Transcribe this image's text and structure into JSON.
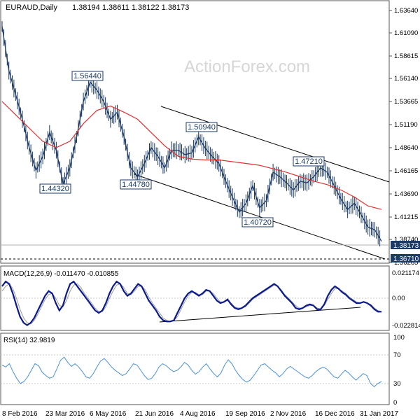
{
  "header": {
    "symbol": "EURAUD,Daily",
    "ohlc": "1.38194 1.38611 1.38122 1.38173"
  },
  "watermark": "ActionForex.com",
  "colors": {
    "candle": "#1b3a66",
    "sma": "#e03030",
    "macd": "#0a1a8c",
    "signal": "#9a9a9a",
    "rsi": "#4a90d9",
    "channel": "#000000",
    "label_border": "#1b3a66"
  },
  "chart_data": [
    {
      "type": "line",
      "panel": "price",
      "x_ticks": [
        "8 Feb 2016",
        "23 Mar 2016",
        "6 May 2016",
        "21 Jun 2016",
        "4 Aug 2016",
        "19 Sep 2016",
        "2 Nov 2016",
        "16 Dec 2016",
        "31 Jan 2017"
      ],
      "y_ticks": [
        "1.63640",
        "1.61090",
        "1.58615",
        "1.56140",
        "1.53665",
        "1.51190",
        "1.48640",
        "1.46165",
        "1.43690",
        "1.41215",
        "1.38740",
        "1.36265"
      ],
      "ylim": [
        1.358,
        1.643
      ],
      "last_price": "1.38173",
      "dashed_level": "1.36710",
      "annotations": [
        "1.56440",
        "1.44320",
        "1.44780",
        "1.50940",
        "1.40720",
        "1.47210"
      ],
      "series": [
        {
          "values": [
            1.625,
            1.575,
            1.548,
            1.52,
            1.488,
            1.462,
            1.478,
            1.505,
            1.485,
            1.447,
            1.465,
            1.5,
            1.54,
            1.562,
            1.553,
            1.54,
            1.52,
            1.528,
            1.5,
            1.465,
            1.455,
            1.47,
            1.488,
            1.478,
            1.465,
            1.485,
            1.485,
            1.48,
            1.482,
            1.5,
            1.487,
            1.478,
            1.47,
            1.45,
            1.432,
            1.415,
            1.425,
            1.445,
            1.42,
            1.428,
            1.46,
            1.455,
            1.448,
            1.44,
            1.45,
            1.448,
            1.455,
            1.465,
            1.46,
            1.445,
            1.43,
            1.418,
            1.425,
            1.412,
            1.398,
            1.395,
            1.382
          ]
        },
        {
          "values": [
            1.54,
            1.525,
            1.51,
            1.495,
            1.488,
            1.495,
            1.515,
            1.53,
            1.535,
            1.528,
            1.52,
            1.505,
            1.49,
            1.478,
            1.475,
            1.474,
            1.474,
            1.472,
            1.47,
            1.468,
            1.464,
            1.46,
            1.455,
            1.45,
            1.446,
            1.44,
            1.432,
            1.422,
            1.418
          ]
        }
      ]
    },
    {
      "type": "line",
      "panel": "macd",
      "title": "MACD(12,26,9) -0.011470 -0.010855",
      "y_ticks": [
        "0.021174",
        "0.00",
        "-0.022814"
      ],
      "series": [
        {
          "values": [
            0.01,
            0.014,
            0.012,
            0.004,
            -0.006,
            -0.015,
            -0.02,
            -0.022,
            -0.02,
            -0.016,
            -0.01,
            -0.004,
            0.002,
            0.006,
            0.004,
            -0.004,
            -0.01,
            -0.006,
            0.004,
            0.012,
            0.014,
            0.01,
            0.006,
            0.002,
            -0.002,
            -0.006,
            -0.01,
            -0.012,
            -0.01,
            -0.004,
            0.004,
            0.01,
            0.014,
            0.012,
            0.006,
            0.002,
            0.004,
            0.008,
            0.012,
            0.01,
            0.004,
            -0.002,
            -0.006,
            -0.01,
            -0.015,
            -0.018,
            -0.019,
            -0.019,
            -0.018,
            -0.012,
            -0.006,
            0.0,
            0.004,
            0.006,
            0.004,
            0.002,
            0.004,
            0.007,
            0.006,
            0.002,
            -0.002,
            -0.004,
            -0.003,
            -0.001,
            -0.005,
            -0.008,
            -0.009,
            -0.008,
            -0.006,
            -0.003,
            0.0,
            0.002,
            0.004,
            0.006,
            0.008,
            0.01,
            0.012,
            0.01,
            0.006,
            0.002,
            -0.001,
            -0.004,
            -0.008,
            -0.009,
            -0.008,
            -0.006,
            -0.005,
            -0.006,
            -0.009,
            -0.009,
            -0.005,
            0.002,
            0.007,
            0.01,
            0.008,
            0.005,
            0.003,
            0.0,
            -0.002,
            -0.004,
            -0.004,
            -0.003,
            -0.004,
            -0.006,
            -0.009,
            -0.011,
            -0.011
          ]
        },
        {
          "values": [
            0.006,
            0.01,
            0.012,
            0.008,
            0.0,
            -0.009,
            -0.016,
            -0.02,
            -0.021,
            -0.018,
            -0.013,
            -0.007,
            -0.001,
            0.003,
            0.004,
            0.0,
            -0.006,
            -0.007,
            -0.002,
            0.006,
            0.011,
            0.012,
            0.009,
            0.004,
            0.0,
            -0.004,
            -0.008,
            -0.011,
            -0.011,
            -0.007,
            0.0,
            0.006,
            0.011,
            0.012,
            0.009,
            0.004,
            0.003,
            0.006,
            0.01,
            0.01,
            0.007,
            0.001,
            -0.004,
            -0.008,
            -0.012,
            -0.016,
            -0.018,
            -0.019,
            -0.018,
            -0.015,
            -0.009,
            -0.003,
            0.002,
            0.005,
            0.005,
            0.003,
            0.003,
            0.006,
            0.006,
            0.004,
            0.0,
            -0.003,
            -0.003,
            -0.002,
            -0.004,
            -0.007,
            -0.008,
            -0.008,
            -0.007,
            -0.004,
            -0.001,
            0.001,
            0.003,
            0.005,
            0.007,
            0.009,
            0.011,
            0.01,
            0.007,
            0.003,
            0.0,
            -0.003,
            -0.006,
            -0.008,
            -0.008,
            -0.007,
            -0.006,
            -0.006,
            -0.008,
            -0.009,
            -0.006,
            -0.001,
            0.004,
            0.008,
            0.008,
            0.006,
            0.004,
            0.001,
            -0.001,
            -0.003,
            -0.004,
            -0.003,
            -0.004,
            -0.005,
            -0.008,
            -0.01,
            -0.011
          ]
        }
      ]
    },
    {
      "type": "line",
      "panel": "rsi",
      "title": "RSI(14) 32.9819",
      "y_ticks": [
        "100",
        "70",
        "30",
        "0"
      ],
      "ylim": [
        0,
        100
      ],
      "series": [
        {
          "values": [
            58,
            55,
            60,
            48,
            38,
            30,
            33,
            40,
            50,
            60,
            57,
            47,
            42,
            38,
            40,
            52,
            65,
            70,
            62,
            56,
            60,
            55,
            48,
            40,
            38,
            45,
            55,
            64,
            68,
            62,
            55,
            50,
            46,
            42,
            45,
            52,
            60,
            58,
            50,
            42,
            36,
            38,
            45,
            55,
            60,
            57,
            52,
            48,
            50,
            55,
            62,
            58,
            50,
            44,
            48,
            55,
            60,
            52,
            45,
            40,
            46,
            58,
            66,
            60,
            50,
            42,
            36,
            32,
            35,
            42,
            50,
            58,
            60,
            55,
            50,
            46,
            40,
            45,
            52,
            56,
            52,
            48,
            44,
            40,
            38,
            42,
            48,
            52,
            55,
            52,
            46,
            40,
            38,
            44,
            50,
            46,
            40,
            35,
            40,
            45,
            42,
            30,
            25,
            30,
            33
          ]
        }
      ]
    }
  ]
}
